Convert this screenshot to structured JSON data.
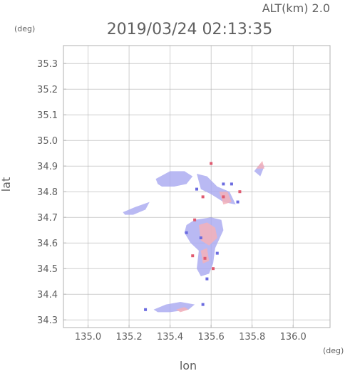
{
  "header": {
    "altitude": "ALT(km) 2.0",
    "timestamp": "2019/03/24 02:13:35"
  },
  "chart_data": {
    "type": "heatmap",
    "xlabel": "lon",
    "ylabel": "lat",
    "x_unit": "(deg)",
    "y_unit": "(deg)",
    "xlim": [
      134.88,
      136.18
    ],
    "ylim": [
      34.27,
      35.37
    ],
    "x_ticks": [
      "135.0",
      "135.2",
      "135.4",
      "135.6",
      "135.8",
      "136.0"
    ],
    "y_ticks": [
      "34.3",
      "34.4",
      "34.5",
      "34.6",
      "34.7",
      "34.8",
      "34.9",
      "35.0",
      "35.1",
      "35.2",
      "35.3"
    ],
    "grid": true,
    "colors": {
      "negative": "#a8a8f0",
      "positive": "#f3b0b8",
      "frame": "#b0b0b0",
      "text": "#606060"
    },
    "echo_regions": [
      {
        "name": "northwest-band",
        "sign": "negative",
        "points": [
          [
            135.33,
            34.85
          ],
          [
            135.4,
            34.88
          ],
          [
            135.47,
            34.88
          ],
          [
            135.51,
            34.86
          ],
          [
            135.48,
            34.83
          ],
          [
            135.42,
            34.82
          ],
          [
            135.36,
            34.82
          ],
          [
            135.34,
            34.83
          ]
        ]
      },
      {
        "name": "west-band",
        "sign": "negative",
        "points": [
          [
            135.17,
            34.72
          ],
          [
            135.23,
            34.74
          ],
          [
            135.3,
            34.76
          ],
          [
            135.28,
            34.73
          ],
          [
            135.22,
            34.71
          ],
          [
            135.18,
            34.71
          ]
        ]
      },
      {
        "name": "central-cluster",
        "sign": "negative",
        "points": [
          [
            135.48,
            34.67
          ],
          [
            135.52,
            34.69
          ],
          [
            135.6,
            34.7
          ],
          [
            135.65,
            34.69
          ],
          [
            135.66,
            34.65
          ],
          [
            135.62,
            34.58
          ],
          [
            135.61,
            34.52
          ],
          [
            135.59,
            34.48
          ],
          [
            135.55,
            34.47
          ],
          [
            135.53,
            34.5
          ],
          [
            135.54,
            34.57
          ],
          [
            135.5,
            34.6
          ],
          [
            135.47,
            34.64
          ]
        ]
      },
      {
        "name": "northeast-scatter",
        "sign": "negative",
        "points": [
          [
            135.53,
            34.87
          ],
          [
            135.58,
            34.86
          ],
          [
            135.63,
            34.82
          ],
          [
            135.69,
            34.8
          ],
          [
            135.72,
            34.75
          ],
          [
            135.66,
            34.76
          ],
          [
            135.6,
            34.79
          ],
          [
            135.55,
            34.81
          ]
        ]
      },
      {
        "name": "south-band",
        "sign": "negative",
        "points": [
          [
            135.32,
            34.34
          ],
          [
            135.38,
            34.36
          ],
          [
            135.45,
            34.37
          ],
          [
            135.52,
            34.36
          ],
          [
            135.49,
            34.34
          ],
          [
            135.4,
            34.33
          ],
          [
            135.34,
            34.33
          ]
        ]
      },
      {
        "name": "far-east-spot",
        "sign": "negative",
        "points": [
          [
            135.81,
            34.88
          ],
          [
            135.84,
            34.91
          ],
          [
            135.86,
            34.9
          ],
          [
            135.84,
            34.86
          ]
        ]
      },
      {
        "name": "central-positive",
        "sign": "positive",
        "points": [
          [
            135.54,
            34.67
          ],
          [
            135.58,
            34.68
          ],
          [
            135.62,
            34.66
          ],
          [
            135.63,
            34.62
          ],
          [
            135.59,
            34.59
          ],
          [
            135.55,
            34.61
          ]
        ]
      },
      {
        "name": "central-positive-2",
        "sign": "positive",
        "points": [
          [
            135.55,
            34.57
          ],
          [
            135.58,
            34.58
          ],
          [
            135.59,
            34.53
          ],
          [
            135.56,
            34.52
          ]
        ]
      },
      {
        "name": "northeast-positive",
        "sign": "positive",
        "points": [
          [
            135.64,
            34.8
          ],
          [
            135.68,
            34.8
          ],
          [
            135.7,
            34.76
          ],
          [
            135.66,
            34.75
          ]
        ]
      },
      {
        "name": "far-east-positive",
        "sign": "positive",
        "points": [
          [
            135.82,
            34.89
          ],
          [
            135.85,
            34.92
          ],
          [
            135.86,
            34.89
          ]
        ]
      },
      {
        "name": "south-positive",
        "sign": "positive",
        "points": [
          [
            135.43,
            34.34
          ],
          [
            135.47,
            34.35
          ],
          [
            135.49,
            34.34
          ],
          [
            135.45,
            34.33
          ]
        ]
      }
    ],
    "echo_specks": [
      {
        "sign": "positive",
        "lon": 135.6,
        "lat": 34.91
      },
      {
        "sign": "positive",
        "lon": 135.56,
        "lat": 34.78
      },
      {
        "sign": "positive",
        "lon": 135.52,
        "lat": 34.69
      },
      {
        "sign": "positive",
        "lon": 135.66,
        "lat": 34.78
      },
      {
        "sign": "positive",
        "lon": 135.74,
        "lat": 34.8
      },
      {
        "sign": "positive",
        "lon": 135.57,
        "lat": 34.54
      },
      {
        "sign": "positive",
        "lon": 135.61,
        "lat": 34.5
      },
      {
        "sign": "negative",
        "lon": 135.58,
        "lat": 34.46
      },
      {
        "sign": "negative",
        "lon": 135.48,
        "lat": 34.64
      },
      {
        "sign": "negative",
        "lon": 135.66,
        "lat": 34.83
      },
      {
        "sign": "negative",
        "lon": 135.7,
        "lat": 34.83
      },
      {
        "sign": "negative",
        "lon": 135.53,
        "lat": 34.81
      },
      {
        "sign": "negative",
        "lon": 135.55,
        "lat": 34.62
      },
      {
        "sign": "negative",
        "lon": 135.63,
        "lat": 34.56
      },
      {
        "sign": "negative",
        "lon": 135.28,
        "lat": 34.34
      },
      {
        "sign": "negative",
        "lon": 135.56,
        "lat": 34.36
      },
      {
        "sign": "positive",
        "lon": 135.51,
        "lat": 34.55
      },
      {
        "sign": "negative",
        "lon": 135.73,
        "lat": 34.76
      }
    ]
  }
}
